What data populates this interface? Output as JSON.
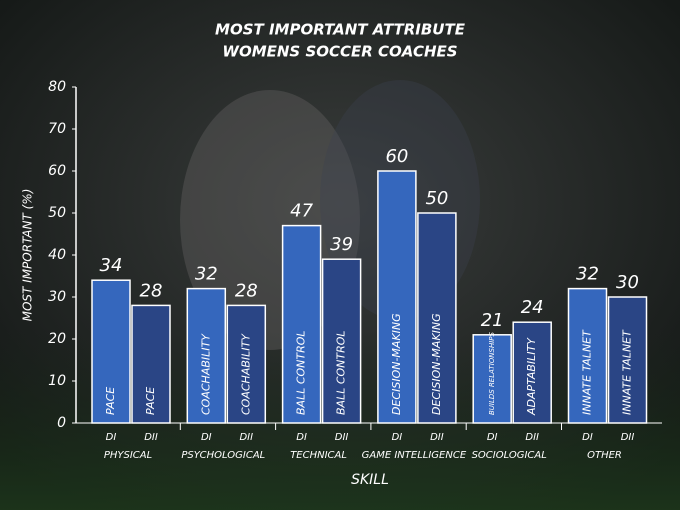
{
  "chart_data": {
    "type": "bar",
    "title": "MOST IMPORTANT ATTRIBUTE",
    "subtitle": "WOMENS SOCCER COACHES",
    "x_label": "SKILL",
    "y_label": "MOST IMPORTANT (%)",
    "categories": [
      "PHYSICAL",
      "PSYCHOLOGICAL",
      "TECHNICAL",
      "GAME INTELLIGENCE",
      "SOCIOLOGICAL",
      "OTHER"
    ],
    "series": [
      {
        "name": "DI",
        "color": "#3567bd",
        "values": [
          34,
          32,
          47,
          60,
          21,
          32
        ],
        "bar_labels": [
          "PACE",
          "COACHABILITY",
          "BALL CONTROL",
          "DECISION-MAKING",
          "BUILDS RELATIONSHIPS",
          "INNATE TALNET"
        ]
      },
      {
        "name": "DII",
        "color": "#2a4585",
        "values": [
          28,
          28,
          39,
          50,
          24,
          30
        ],
        "bar_labels": [
          "PACE",
          "COACHABILITY",
          "BALL CONTROL",
          "DECISION-MAKING",
          "ADAPTABILITY",
          "INNATE TALNET"
        ]
      }
    ],
    "ylim": [
      0,
      80
    ],
    "yticks": [
      0,
      10,
      20,
      30,
      40,
      50,
      60,
      70,
      80
    ]
  }
}
